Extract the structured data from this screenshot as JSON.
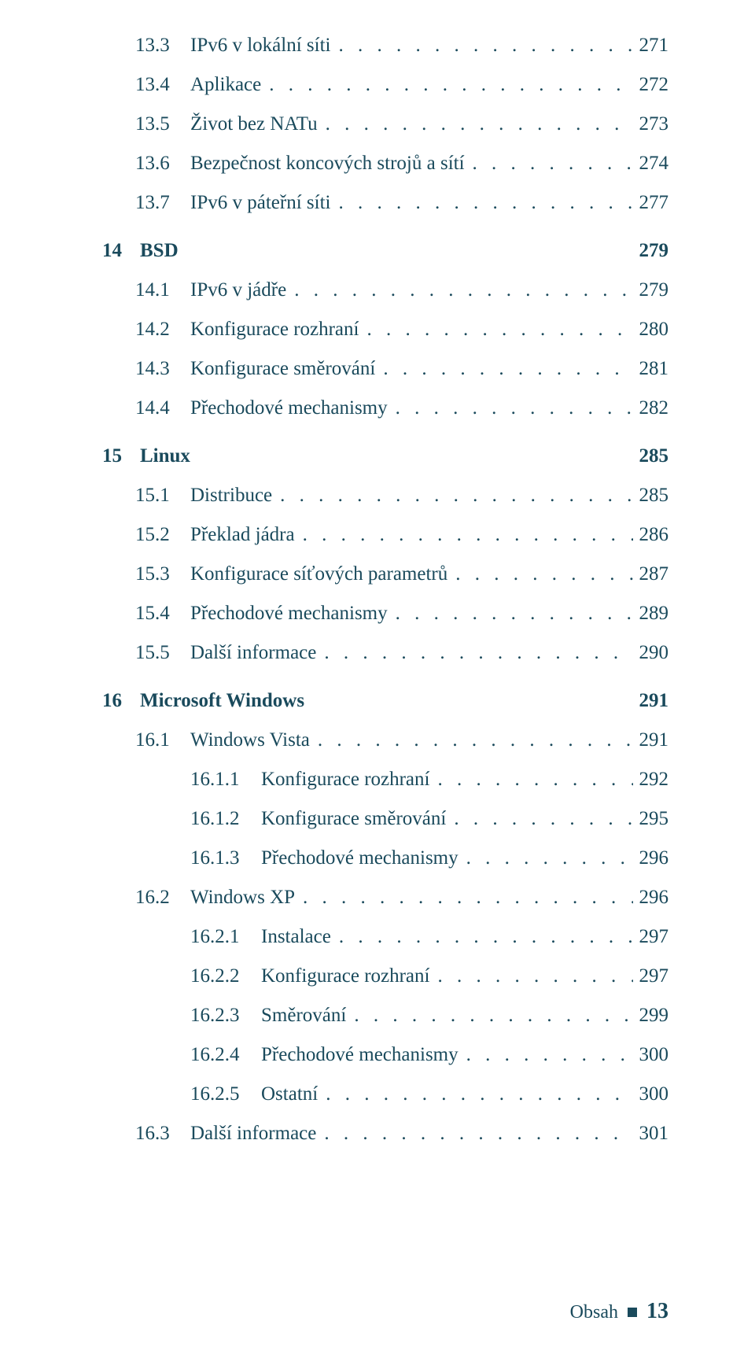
{
  "colors": {
    "text": "#1a4a5c",
    "background": "#ffffff"
  },
  "typography": {
    "body_fontsize_pt": 19,
    "family": "serif"
  },
  "dot_leader": ". . . . . . . . . . . . . . . . . . . . . . . . . . . . . . . . . . . . . . . . . . . . . . . . . . . . . . . . . . . . . . . . . . . . . . . . . . . . . . . . . . . . . . . . . . . . . . . . . . . .",
  "entries": [
    {
      "level": 1,
      "num": "13.3",
      "title": "IPv6 v lokální síti",
      "page": "271"
    },
    {
      "level": 1,
      "num": "13.4",
      "title": "Aplikace",
      "page": "272"
    },
    {
      "level": 1,
      "num": "13.5",
      "title": "Život bez NATu",
      "page": "273"
    },
    {
      "level": 1,
      "num": "13.6",
      "title": "Bezpečnost koncových strojů a sítí",
      "page": "274"
    },
    {
      "level": 1,
      "num": "13.7",
      "title": "IPv6 v páteřní síti",
      "page": "277"
    },
    {
      "level": 0,
      "num": "14",
      "title": "BSD",
      "page": "279"
    },
    {
      "level": 1,
      "num": "14.1",
      "title": "IPv6 v jádře",
      "page": "279"
    },
    {
      "level": 1,
      "num": "14.2",
      "title": "Konfigurace rozhraní",
      "page": "280"
    },
    {
      "level": 1,
      "num": "14.3",
      "title": "Konfigurace směrování",
      "page": "281"
    },
    {
      "level": 1,
      "num": "14.4",
      "title": "Přechodové mechanismy",
      "page": "282"
    },
    {
      "level": 0,
      "num": "15",
      "title": "Linux",
      "page": "285"
    },
    {
      "level": 1,
      "num": "15.1",
      "title": "Distribuce",
      "page": "285"
    },
    {
      "level": 1,
      "num": "15.2",
      "title": "Překlad jádra",
      "page": "286"
    },
    {
      "level": 1,
      "num": "15.3",
      "title": "Konfigurace síťových parametrů",
      "page": "287"
    },
    {
      "level": 1,
      "num": "15.4",
      "title": "Přechodové mechanismy",
      "page": "289"
    },
    {
      "level": 1,
      "num": "15.5",
      "title": "Další informace",
      "page": "290"
    },
    {
      "level": 0,
      "num": "16",
      "title": "Microsoft Windows",
      "page": "291"
    },
    {
      "level": 1,
      "num": "16.1",
      "title": "Windows Vista",
      "page": "291"
    },
    {
      "level": 2,
      "num": "16.1.1",
      "title": "Konfigurace rozhraní",
      "page": "292"
    },
    {
      "level": 2,
      "num": "16.1.2",
      "title": "Konfigurace směrování",
      "page": "295"
    },
    {
      "level": 2,
      "num": "16.1.3",
      "title": "Přechodové mechanismy",
      "page": "296"
    },
    {
      "level": 1,
      "num": "16.2",
      "title": "Windows XP",
      "page": "296"
    },
    {
      "level": 2,
      "num": "16.2.1",
      "title": "Instalace",
      "page": "297"
    },
    {
      "level": 2,
      "num": "16.2.2",
      "title": "Konfigurace rozhraní",
      "page": "297"
    },
    {
      "level": 2,
      "num": "16.2.3",
      "title": "Směrování",
      "page": "299"
    },
    {
      "level": 2,
      "num": "16.2.4",
      "title": "Přechodové mechanismy",
      "page": "300"
    },
    {
      "level": 2,
      "num": "16.2.5",
      "title": "Ostatní",
      "page": "300"
    },
    {
      "level": 1,
      "num": "16.3",
      "title": "Další informace",
      "page": "301"
    }
  ],
  "footer": {
    "label": "Obsah",
    "page_number": "13"
  }
}
